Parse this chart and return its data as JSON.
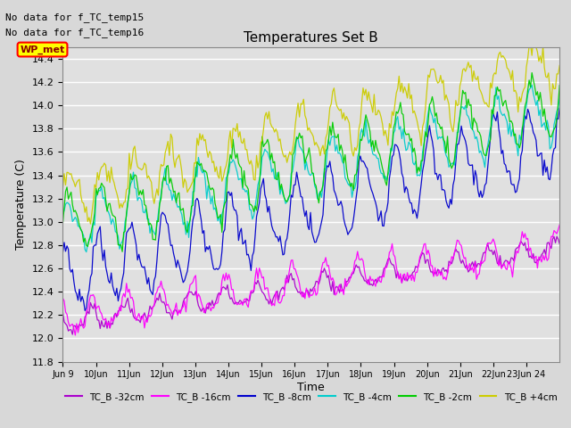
{
  "title": "Temperatures Set B",
  "ylabel": "Temperature (C)",
  "xlabel": "Time",
  "ylim": [
    11.8,
    14.5
  ],
  "note1": "No data for f_TC_temp15",
  "note2": "No data for f_TC_temp16",
  "wp_label": "WP_met",
  "series_labels": [
    "TC_B -32cm",
    "TC_B -16cm",
    "TC_B -8cm",
    "TC_B -4cm",
    "TC_B -2cm",
    "TC_B +4cm"
  ],
  "series_colors": [
    "#aa00cc",
    "#ff00ff",
    "#0000cc",
    "#00cccc",
    "#00cc00",
    "#cccc00"
  ],
  "yticks": [
    11.8,
    12.0,
    12.2,
    12.4,
    12.6,
    12.8,
    13.0,
    13.2,
    13.4,
    13.6,
    13.8,
    14.0,
    14.2,
    14.4
  ],
  "xtick_labels": [
    "Jun 9",
    "10Jun",
    "11Jun",
    "12Jun",
    "13Jun",
    "14Jun",
    "15Jun",
    "16Jun",
    "17Jun",
    "18Jun",
    "19Jun",
    "20Jun",
    "21Jun",
    "22Jun",
    "23Jun 24"
  ],
  "background_color": "#e0e0e0",
  "grid_color": "#ffffff",
  "fig_bg": "#d8d8d8"
}
